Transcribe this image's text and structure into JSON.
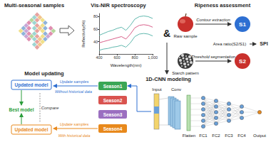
{
  "chart_data": {
    "type": "line",
    "title": "Vis-NIR spectroscopy",
    "x_label": "Wavelength(nm)",
    "y_label": "Reflectivity(%)",
    "x": [
      400,
      450,
      500,
      550,
      600,
      650,
      700,
      750,
      800,
      850,
      900,
      950,
      1000
    ],
    "series": [
      {
        "color": "#5fb8ae",
        "values": [
          50,
          53,
          56,
          58,
          61,
          63,
          58,
          66,
          76,
          80,
          81,
          80,
          77
        ]
      },
      {
        "color": "#d9608a",
        "values": [
          38,
          40,
          42,
          44,
          46,
          48,
          44,
          52,
          62,
          66,
          67,
          66,
          63
        ]
      },
      {
        "color": "#5fb8ae",
        "values": [
          26,
          28,
          29,
          31,
          32,
          34,
          31,
          38,
          48,
          52,
          53,
          52,
          49
        ]
      }
    ],
    "xlim": [
      400,
      1000
    ],
    "xticks": [
      400,
      600,
      800,
      1000
    ],
    "ylim": [
      20,
      85
    ],
    "yticks": [
      40,
      60,
      80
    ],
    "grid": false
  },
  "diagram": {
    "samples": {
      "title": "Multi-seasonal samples"
    },
    "connector": "&",
    "ripeness": {
      "title": "Ripeness assessment",
      "raw": "Raw sample",
      "contour": "Contour extraction",
      "s1": "S1",
      "area_ratio": "Area ratio(S2/S1)",
      "spi": "SPI",
      "starch": "Starch pattern",
      "threshold": "Threshold segmentation",
      "s2": "S2"
    },
    "modeling": {
      "title": "1D-CNN modeling",
      "input": "Input",
      "conv": "Conv",
      "flatten": "Flatten",
      "fc": [
        "FC1",
        "FC2",
        "FC3",
        "FC4"
      ],
      "output": "Output"
    },
    "updating": {
      "title": "Model updating",
      "seasons": [
        {
          "label": "Season1",
          "color": "#3aa655"
        },
        {
          "label": "Season2",
          "color": "#d9534f"
        },
        {
          "label": "Season3",
          "color": "#9b6fc0"
        },
        {
          "label": "Season4",
          "color": "#e8891c"
        }
      ],
      "upper": {
        "box": "Updated model",
        "line1": "Update samples",
        "line2": "Without historical data",
        "color": "#2e6fd1"
      },
      "lower": {
        "box": "Updated model",
        "line1": "Update samples",
        "line2": "With historical data",
        "color": "#e8891c"
      },
      "best": {
        "label": "Best model",
        "color": "#2a9d3a"
      },
      "compare": "Compare"
    }
  }
}
